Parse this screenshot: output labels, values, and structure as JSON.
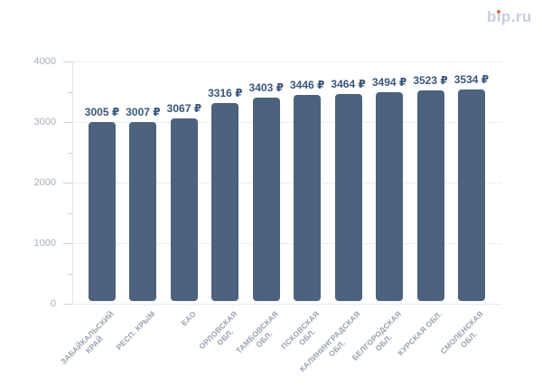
{
  "logo": {
    "text": "bip.ru",
    "text_color": "#c7cdde",
    "dot_color": "#e8653f"
  },
  "chart_data": {
    "type": "bar",
    "title": "",
    "xlabel": "",
    "ylabel": "",
    "categories": [
      "ЗАБАЙКАЛЬСКИЙ КРАЙ",
      "РЕСП. КРЫМ",
      "ЕАО",
      "ОРЛОВСКАЯ ОБЛ.",
      "ТАМБОВСКАЯ ОБЛ.",
      "ПСКОВСКАЯ ОБЛ.",
      "КАЛИНИНГРАДСКАЯ ОБЛ.",
      "БЕЛГОРОДСКАЯ ОБЛ.",
      "КУРСКАЯ ОБЛ.",
      "СМОЛЕНСКАЯ ОБЛ."
    ],
    "category_lines": [
      [
        "ЗАБАЙКАЛЬСКИЙ",
        "КРАЙ"
      ],
      [
        "РЕСП. КРЫМ"
      ],
      [
        "ЕАО"
      ],
      [
        "ОРЛОВСКАЯ",
        "ОБЛ."
      ],
      [
        "ТАМБОВСКАЯ",
        "ОБЛ."
      ],
      [
        "ПСКОВСКАЯ",
        "ОБЛ."
      ],
      [
        "КАЛИНИНГРАДСКАЯ",
        "ОБЛ."
      ],
      [
        "БЕЛГОРОДСКАЯ",
        "ОБЛ."
      ],
      [
        "КУРСКАЯ ОБЛ."
      ],
      [
        "СМОЛЕНСКАЯ",
        "ОБЛ."
      ]
    ],
    "values": [
      3005,
      3007,
      3067,
      3316,
      3403,
      3446,
      3464,
      3494,
      3523,
      3534
    ],
    "value_labels": [
      "3005 ₽",
      "3007 ₽",
      "3067 ₽",
      "3316 ₽",
      "3403 ₽",
      "3446 ₽",
      "3464 ₽",
      "3494 ₽",
      "3523 ₽",
      "3534 ₽"
    ],
    "currency": "₽",
    "ylim": [
      0,
      4000
    ],
    "yticks": [
      0,
      1000,
      2000,
      3000,
      4000
    ],
    "minor_yticks": [
      500,
      1500,
      2500,
      3500
    ],
    "grid": "horizontal-dotted",
    "legend": "none",
    "bar_color": "#4c627e",
    "value_label_color": "#3a567a",
    "axis_text_color": "#a6adbb"
  }
}
